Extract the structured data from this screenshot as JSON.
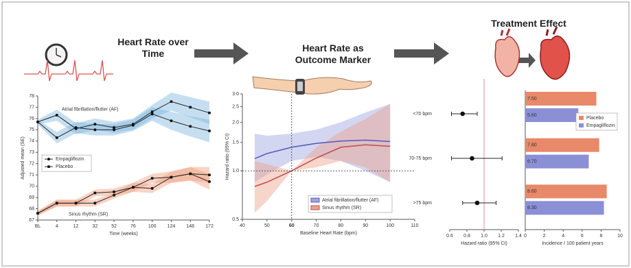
{
  "headings": [
    "Heart Rate over Time",
    "Heart Rate as Outcome Marker",
    "Treatment Effect"
  ],
  "chart_data": [
    {
      "type": "line",
      "y_label": "Adjusted mean (SE)",
      "x_label": "Time (weeks)",
      "categories": [
        "BL",
        "4",
        "12",
        "32",
        "52",
        "76",
        "100",
        "124",
        "148",
        "172"
      ],
      "ylim": [
        67,
        78
      ],
      "yticks": [
        67,
        68,
        69,
        70,
        71,
        72,
        73,
        74,
        75,
        76,
        77,
        78
      ],
      "legend": [
        {
          "name": "Empagliflozin",
          "marker": "circle"
        },
        {
          "name": "Placebo",
          "marker": "square"
        }
      ],
      "groups": [
        {
          "name": "Atrial fibrillation/flutter (AF)",
          "color": "#2a8fcf",
          "band_color": "#7fb9e0",
          "series": [
            {
              "marker": "square",
              "values": [
                75.7,
                76.3,
                75.1,
                75.5,
                75.2,
                75.5,
                76.6,
                77.5,
                77.0,
                76.5
              ],
              "errors": [
                0.2,
                0.5,
                0.5,
                0.5,
                0.5,
                0.5,
                0.6,
                0.8,
                0.9,
                1.0
              ]
            },
            {
              "marker": "circle",
              "values": [
                75.7,
                74.3,
                75.2,
                75.0,
                75.0,
                75.4,
                76.4,
                75.8,
                75.3,
                74.9
              ],
              "errors": [
                0.2,
                0.5,
                0.5,
                0.5,
                0.5,
                0.5,
                0.6,
                0.8,
                0.9,
                1.0
              ]
            }
          ]
        },
        {
          "name": "Sinus rhythm (SR)",
          "color": "#e0553a",
          "band_color": "#f0a07e",
          "series": [
            {
              "marker": "square",
              "values": [
                67.6,
                68.5,
                68.5,
                69.4,
                69.5,
                69.9,
                70.7,
                70.8,
                71.1,
                71.0
              ],
              "errors": [
                0.2,
                0.3,
                0.3,
                0.3,
                0.3,
                0.4,
                0.4,
                0.5,
                0.6,
                0.7
              ]
            },
            {
              "marker": "circle",
              "values": [
                67.6,
                68.5,
                68.5,
                68.5,
                69.2,
                69.9,
                69.8,
                70.8,
                71.1,
                70.4
              ],
              "errors": [
                0.2,
                0.3,
                0.3,
                0.3,
                0.3,
                0.4,
                0.4,
                0.5,
                0.6,
                0.7
              ]
            }
          ]
        }
      ]
    },
    {
      "type": "spline",
      "log_scale": true,
      "y_label": "Hazard ratio (95% CI)",
      "x_label": "Baseline Heart Rate (bpm)",
      "xlim": [
        40,
        110
      ],
      "xticks": [
        40,
        50,
        60,
        70,
        80,
        90,
        100,
        110
      ],
      "ylim": [
        0.5,
        3.0
      ],
      "yticks": [
        0.5,
        {
          "value": 1,
          "label": "1.0"
        },
        1.5,
        {
          "value": 2,
          "label": "2.0"
        },
        2.5,
        {
          "value": 3,
          "label": "3.0"
        }
      ],
      "reference_x": 60,
      "reference_y": 1,
      "x": [
        45,
        50,
        60,
        70,
        80,
        90,
        100
      ],
      "series": [
        {
          "name": "Atrial fibrillation/flutter (AF)",
          "color": "#5b5fb8",
          "band_color": "#9ea3e0",
          "values": [
            1.19,
            1.28,
            1.4,
            1.48,
            1.53,
            1.55,
            1.52
          ],
          "lower": [
            0.85,
            0.95,
            1.15,
            1.22,
            1.15,
            1.0,
            0.85
          ],
          "upper": [
            1.7,
            1.65,
            1.7,
            1.8,
            2.0,
            2.3,
            2.6
          ]
        },
        {
          "name": "Sinus rhythm (SR)",
          "color": "#c0504d",
          "band_color": "#eba28c",
          "values": [
            0.8,
            0.85,
            1.0,
            1.2,
            1.4,
            1.45,
            1.42
          ],
          "lower": [
            0.55,
            0.65,
            1.0,
            1.05,
            1.15,
            1.05,
            0.85
          ],
          "upper": [
            1.15,
            1.1,
            1.0,
            1.4,
            1.75,
            2.1,
            2.6
          ]
        }
      ]
    },
    {
      "type": "forest",
      "x_label": "Hazard ratio (95% CI)",
      "categories": [
        "<70 bpm",
        "70-75 bpm",
        ">75 bpm"
      ],
      "values": [
        0.75,
        0.86,
        0.92
      ],
      "lower": [
        0.62,
        0.62,
        0.75
      ],
      "upper": [
        0.92,
        1.21,
        1.14
      ],
      "xlim": [
        0.6,
        1.4
      ],
      "xticks": [
        0.6,
        0.8,
        {
          "value": 1,
          "label": "1.0"
        },
        1.2,
        1.4
      ],
      "reference_x": 1,
      "reference_color": "#e8a0a8"
    },
    {
      "type": "bar",
      "orientation": "horizontal",
      "x_label": "Incidence / 100 patient years",
      "xlim": [
        0,
        10
      ],
      "xticks": [
        0,
        2,
        4,
        6,
        8,
        10
      ],
      "series": [
        {
          "name": "Placebo",
          "color": "#e8896a",
          "values": [
            7.5,
            7.8,
            8.6
          ],
          "value_labels": [
            "7.50",
            "7.80",
            "8.60"
          ]
        },
        {
          "name": "Empagliflozin",
          "color": "#8b8fd6",
          "values": [
            5.6,
            6.7,
            8.3
          ],
          "value_labels": [
            "5.60",
            "6.70",
            "8.30"
          ]
        }
      ]
    }
  ]
}
